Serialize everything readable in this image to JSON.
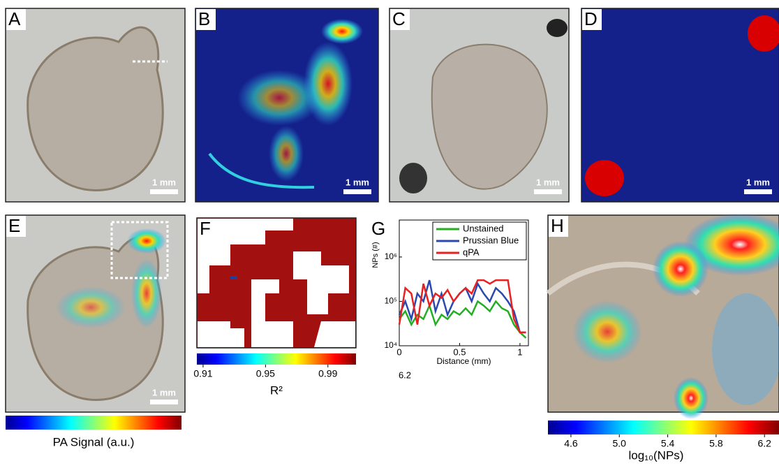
{
  "panels": [
    {
      "label": "A",
      "scale_bar": "1 mm"
    },
    {
      "label": "B",
      "scale_bar": "1 mm"
    },
    {
      "label": "C",
      "scale_bar": "1 mm"
    },
    {
      "label": "D",
      "scale_bar": "1 mm"
    },
    {
      "label": "E",
      "scale_bar": "1 mm"
    },
    {
      "label": "F"
    },
    {
      "label": "G"
    },
    {
      "label": "H"
    }
  ],
  "pa_colorbar": {
    "label": "PA Signal (a.u.)"
  },
  "r2_colorbar": {
    "label": "R²",
    "lim": [
      0.906,
      1.008
    ],
    "ticks": [
      {
        "value": 0.91,
        "label": "0.91"
      },
      {
        "value": 0.95,
        "label": "0.95"
      },
      {
        "value": 0.99,
        "label": "0.99"
      }
    ]
  },
  "nps_colorbar": {
    "label": "log₁₀(NPs)",
    "lim": [
      4.41,
      6.32
    ],
    "ticks": [
      {
        "value": 4.6,
        "label": "4.6"
      },
      {
        "value": 5.0,
        "label": "5.0"
      },
      {
        "value": 5.4,
        "label": "5.4"
      },
      {
        "value": 5.8,
        "label": "5.8"
      },
      {
        "value": 6.2,
        "label": "6.2"
      }
    ]
  },
  "chart_data": {
    "type": "line",
    "xlabel": "Distance (mm)",
    "ylabel": "NPs (#)",
    "note": "6.2",
    "log_y": true,
    "x": [
      0,
      0.05,
      0.1,
      0.15,
      0.2,
      0.25,
      0.3,
      0.35,
      0.4,
      0.45,
      0.5,
      0.55,
      0.6,
      0.65,
      0.7,
      0.75,
      0.8,
      0.85,
      0.9,
      0.95,
      1,
      1.05
    ],
    "xlim": [
      0,
      1.07
    ],
    "xticks": [
      0,
      0.5,
      1
    ],
    "ylim": [
      10000,
      6800000
    ],
    "yticks": [
      {
        "value": 10000,
        "label": "10⁴"
      },
      {
        "value": 100000,
        "label": "10⁵"
      },
      {
        "value": 1000000,
        "label": "10⁶"
      }
    ],
    "series": [
      {
        "name": "Unstained",
        "color": "#22b022",
        "values": [
          40000,
          60000,
          30000,
          50000,
          40000,
          80000,
          30000,
          50000,
          40000,
          60000,
          50000,
          70000,
          50000,
          100000,
          80000,
          60000,
          100000,
          70000,
          60000,
          30000,
          20000,
          15000
        ]
      },
      {
        "name": "Prussian Blue",
        "color": "#2a48b0",
        "values": [
          50000,
          100000,
          40000,
          150000,
          100000,
          300000,
          60000,
          150000,
          50000,
          100000,
          150000,
          200000,
          100000,
          250000,
          150000,
          100000,
          200000,
          150000,
          100000,
          60000,
          20000,
          20000
        ]
      },
      {
        "name": "qPA",
        "color": "#e82020",
        "values": [
          30000,
          200000,
          150000,
          30000,
          250000,
          80000,
          150000,
          120000,
          180000,
          100000,
          150000,
          200000,
          150000,
          300000,
          300000,
          250000,
          300000,
          300000,
          300000,
          40000,
          20000,
          20000
        ]
      }
    ]
  }
}
